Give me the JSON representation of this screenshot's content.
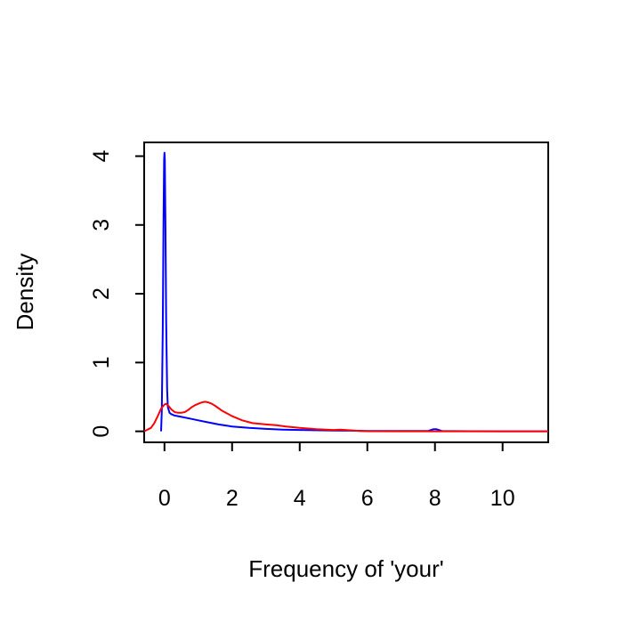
{
  "chart_data": {
    "type": "line",
    "title": "",
    "xlabel": "Frequency of 'your'",
    "ylabel": "Density",
    "xlim": [
      -0.6,
      11.35
    ],
    "ylim": [
      -0.16,
      4.2
    ],
    "x_ticks": [
      0,
      2,
      4,
      6,
      8,
      10
    ],
    "y_ticks": [
      0,
      1,
      2,
      3,
      4
    ],
    "grid": false,
    "legend": "none",
    "series": [
      {
        "color": "#0000ff",
        "x": [
          -0.1,
          -0.08,
          -0.05,
          -0.03,
          -0.01,
          0.0,
          0.01,
          0.03,
          0.05,
          0.08,
          0.1,
          0.15,
          0.2,
          0.3,
          0.5,
          0.8,
          1.0,
          1.3,
          1.6,
          2.0,
          2.5,
          3.0,
          3.5,
          4.0,
          5.0,
          5.5,
          6.0,
          7.0,
          7.8,
          7.95,
          8.05,
          8.2,
          9.0,
          10.0,
          11.35
        ],
        "y": [
          0.0,
          0.3,
          1.5,
          3.0,
          3.95,
          4.05,
          3.95,
          3.0,
          1.6,
          0.6,
          0.35,
          0.27,
          0.25,
          0.23,
          0.21,
          0.18,
          0.16,
          0.13,
          0.1,
          0.07,
          0.05,
          0.035,
          0.025,
          0.02,
          0.012,
          0.01,
          0.006,
          0.004,
          0.005,
          0.03,
          0.03,
          0.005,
          0.002,
          0.001,
          0.0
        ]
      },
      {
        "color": "#ff0000",
        "x": [
          -0.6,
          -0.4,
          -0.3,
          -0.2,
          -0.1,
          0.0,
          0.05,
          0.1,
          0.2,
          0.3,
          0.4,
          0.5,
          0.6,
          0.7,
          0.8,
          0.9,
          1.0,
          1.1,
          1.2,
          1.3,
          1.4,
          1.5,
          1.7,
          2.0,
          2.3,
          2.6,
          3.0,
          3.3,
          3.6,
          4.0,
          4.5,
          5.0,
          5.2,
          5.5,
          5.8,
          6.0,
          7.0,
          8.0,
          9.0,
          10.0,
          11.35
        ],
        "y": [
          0.0,
          0.05,
          0.12,
          0.22,
          0.33,
          0.39,
          0.4,
          0.38,
          0.32,
          0.28,
          0.27,
          0.27,
          0.28,
          0.31,
          0.35,
          0.38,
          0.4,
          0.42,
          0.43,
          0.42,
          0.4,
          0.37,
          0.3,
          0.22,
          0.16,
          0.12,
          0.1,
          0.09,
          0.07,
          0.05,
          0.03,
          0.02,
          0.025,
          0.015,
          0.005,
          0.002,
          0.001,
          0.0,
          0.0,
          0.0,
          0.0
        ]
      }
    ]
  }
}
